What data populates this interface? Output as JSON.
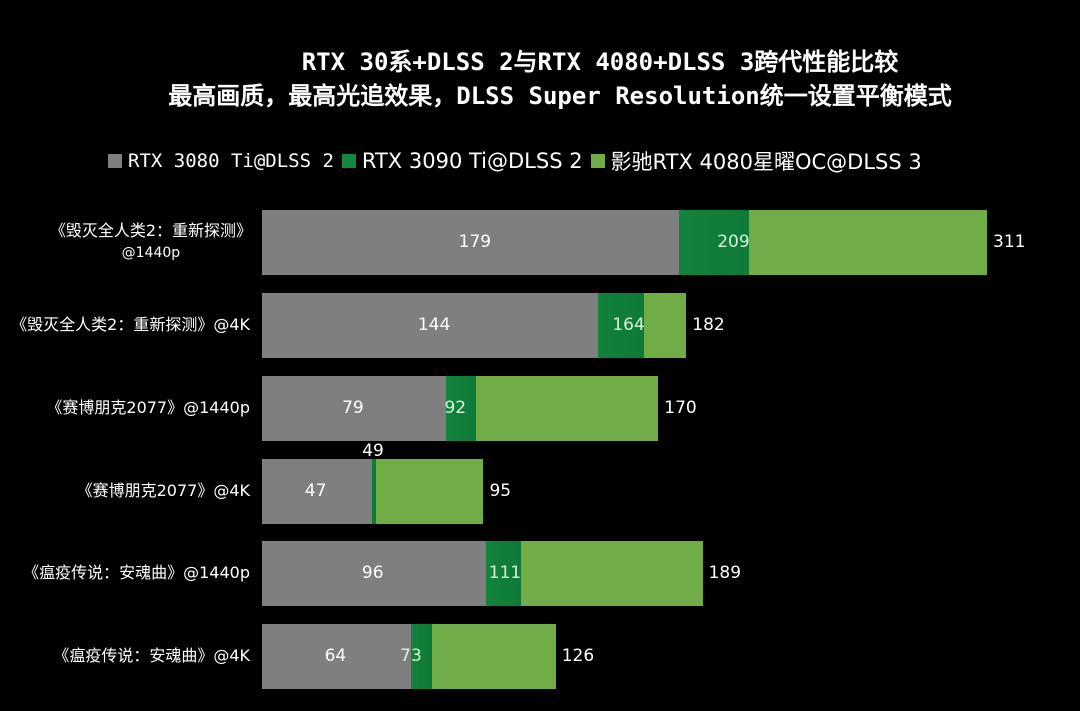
{
  "title_line1": "RTX 30系+DLSS 2与RTX 4080+DLSS 3跨代性能比较",
  "title_line2": "最高画质，最高光追效果，DLSS Super Resolution统一设置平衡模式",
  "legend": [
    {
      "label": "RTX 3080 Ti@DLSS 2",
      "color": "#7f7f7f"
    },
    {
      "label": "RTX 3090 Ti@DLSS 2",
      "color": "#13863f"
    },
    {
      "label": "影驰RTX 4080星曜OC@DLSS 3",
      "color": "#70ad47"
    }
  ],
  "chart_data": {
    "type": "bar",
    "orientation": "horizontal",
    "overlay": true,
    "title": "RTX 30系+DLSS 2与RTX 4080+DLSS 3跨代性能比较",
    "subtitle": "最高画质，最高光追效果，DLSS Super Resolution统一设置平衡模式",
    "categories": [
      "《毁灭全人类2：重新探测》@1440p",
      "《毁灭全人类2：重新探测》@4K",
      "《赛博朋克2077》@1440p",
      "《赛博朋克2077》@4K",
      "《瘟疫传说：安魂曲》@1440p",
      "《瘟疫传说：安魂曲》@4K"
    ],
    "series": [
      {
        "name": "RTX 3080 Ti@DLSS 2",
        "color": "#7f7f7f",
        "values": [
          179,
          144,
          79,
          47,
          96,
          64
        ]
      },
      {
        "name": "RTX 3090 Ti@DLSS 2",
        "color": "#13863f",
        "values": [
          209,
          164,
          92,
          49,
          111,
          73
        ]
      },
      {
        "name": "影驰RTX 4080星曜OC@DLSS 3",
        "color": "#70ad47",
        "values": [
          311,
          182,
          170,
          95,
          189,
          126
        ]
      }
    ],
    "xlabel": "",
    "ylabel": "",
    "grid": false,
    "legend_position": "top"
  },
  "categories_display": [
    {
      "line1": "《毁灭全人类2：重新探测》",
      "line2": "@1440p"
    },
    {
      "line1": "《毁灭全人类2：重新探测》@4K",
      "line2": ""
    },
    {
      "line1": "《赛博朋克2077》@1440p",
      "line2": ""
    },
    {
      "line1": "《赛博朋克2077》@4K",
      "line2": ""
    },
    {
      "line1": "《瘟疫传说：安魂曲》@1440p",
      "line2": ""
    },
    {
      "line1": "《瘟疫传说：安魂曲》@4K",
      "line2": ""
    }
  ]
}
